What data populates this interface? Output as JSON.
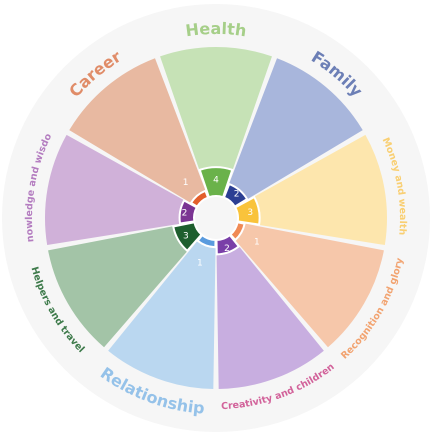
{
  "chart_data": {
    "type": "radial-bar",
    "scale_max": 10,
    "categories": [
      {
        "name": "Health",
        "score": 4,
        "score_label": "4",
        "color": "#6ab24a",
        "light": "#c6e2b6",
        "label_color": "#a6cf89",
        "label_size": 16
      },
      {
        "name": "Family",
        "score": 2,
        "score_label": "2",
        "color": "#2c3f93",
        "light": "#a8b6dc",
        "label_color": "#6c7fb6",
        "label_size": 16
      },
      {
        "name": "Money and wealth",
        "score": 3,
        "score_label": "3",
        "color": "#f9c33b",
        "light": "#fde6ad",
        "label_color": "#f9cf72",
        "label_size": 9.5
      },
      {
        "name": "Recognition and glory",
        "score": 1,
        "score_label": "1",
        "color": "#f08a55",
        "light": "#f6c7aa",
        "label_color": "#f2a370",
        "label_size": 9.5
      },
      {
        "name": "Creativity and children",
        "score": 2,
        "score_label": "2",
        "color": "#7a3fa8",
        "light": "#c8aee0",
        "label_color": "#d2629a",
        "label_size": 9.5
      },
      {
        "name": "Relationship",
        "score": 1,
        "score_label": "1",
        "color": "#5a9bde",
        "light": "#bad7f0",
        "label_color": "#95c2e9",
        "label_size": 16
      },
      {
        "name": "Helpers and travel",
        "score": 3,
        "score_label": "3",
        "color": "#1e5e2e",
        "light": "#a3c4a7",
        "label_color": "#3d7a4a",
        "label_size": 9.5
      },
      {
        "name": "Knowledge and wisdom",
        "score": 2,
        "score_label": "2",
        "color": "#7b3493",
        "light": "#d0b1d9",
        "label_color": "#b47dc0",
        "label_size": 9.5
      },
      {
        "name": "Career",
        "score": 1,
        "score_label": "1",
        "color": "#e35f2c",
        "light": "#e8b9a1",
        "label_color": "#e08c68",
        "label_size": 16
      }
    ],
    "background_circle": "#f6f6f6"
  }
}
